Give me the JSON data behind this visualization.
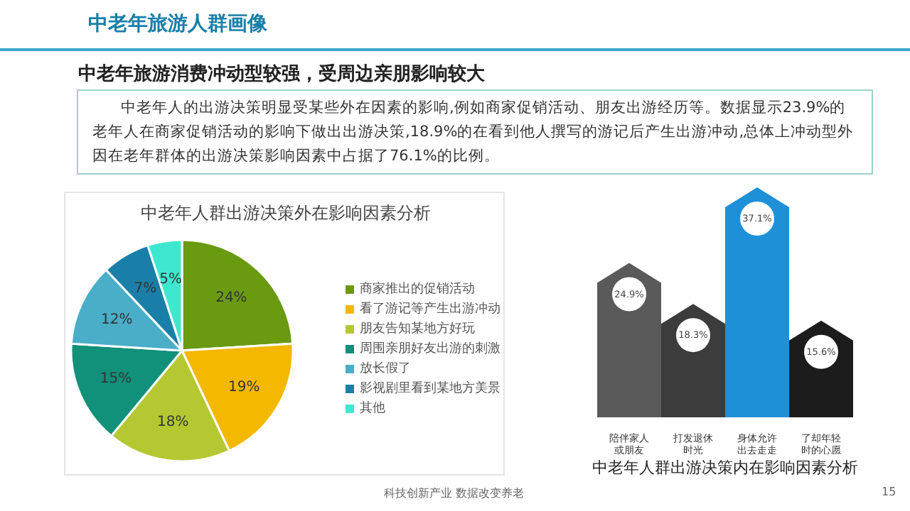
{
  "chart_data": [
    {
      "type": "other",
      "title": "中老年旅游人群画像",
      "subtitle": "中老年旅游消费冲动型较强，受周边亲朋影响较大",
      "annotations": [
        "中老年人的出游决策明显受某些外在因素的影响,例如商家促销活动、朋友出游经历等。数据显示23.9%的老年人在商家促销活动的影响下做出出游决策,18.9%的在看到他人撰写的游记后产生出游冲动,总体上冲动型外因在老年群体的出游决策影响因素中占据了76.1%的比例。",
        "科技创新产业 数据改变养老",
        "15"
      ]
    },
    {
      "type": "pie",
      "title": "中老年人群出游决策外在影响因素分析",
      "categories": [
        "商家推出的促销活动",
        "看了游记等产生出游冲动",
        "朋友告知某地方好玩",
        "周围亲朋好友出游的刺激",
        "放长假了",
        "影视剧里看到某地方美景",
        "其他"
      ],
      "values": [
        24,
        19,
        18,
        15,
        12,
        7,
        5
      ],
      "colors": [
        "#6a9a10",
        "#f5b800",
        "#b5c832",
        "#11907a",
        "#4aaec8",
        "#1a7fa8",
        "#3ee8d0"
      ],
      "value_labels": [
        "24%",
        "19%",
        "18%",
        "15%",
        "12%",
        "7%",
        "5%"
      ],
      "legend": "right"
    },
    {
      "type": "bar",
      "title": "中老年人群出游决策内在影响因素分析",
      "categories": [
        "陪伴家人或朋友",
        "打发退休时光",
        "身体允许出去走走",
        "了却年轻时的心愿"
      ],
      "values": [
        24.9,
        18.3,
        37.1,
        15.6
      ],
      "colors": [
        "#5a5a5a",
        "#3c3c3c",
        "#1e90d8",
        "#1c1c1c"
      ],
      "value_labels": [
        "24.9%",
        "18.3%",
        "37.1%",
        "15.6%"
      ],
      "legend": false
    }
  ]
}
